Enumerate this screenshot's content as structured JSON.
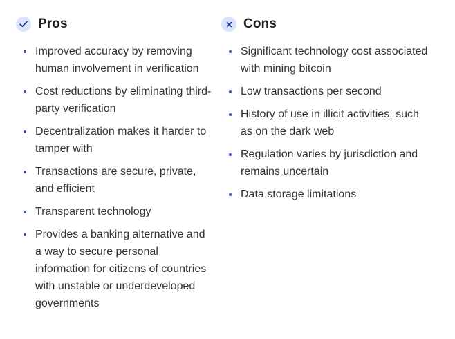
{
  "pros": {
    "title": "Pros",
    "icon": "check-icon",
    "items": [
      "Improved accuracy by removing human involvement in verification",
      "Cost reductions by eliminating third-party verification",
      "Decentralization makes it harder to tamper with",
      "Transactions are secure, private, and efficient",
      "Transparent technology",
      "Provides a banking alternative and a way to secure personal information for citizens of countries with unstable or underdeveloped governments"
    ]
  },
  "cons": {
    "title": "Cons",
    "icon": "x-icon",
    "items": [
      "Significant technology cost associated with mining bitcoin",
      "Low transactions per second",
      "History of use in illicit activities, such as on the dark web",
      "Regulation varies by jurisdiction and remains uncertain",
      "Data storage limitations"
    ]
  },
  "colors": {
    "badge_bg": "#d9e3fb",
    "badge_icon": "#1a3a9c",
    "bullet": "#2b4bb0",
    "heading": "#1f1f1f",
    "text": "#333333"
  }
}
